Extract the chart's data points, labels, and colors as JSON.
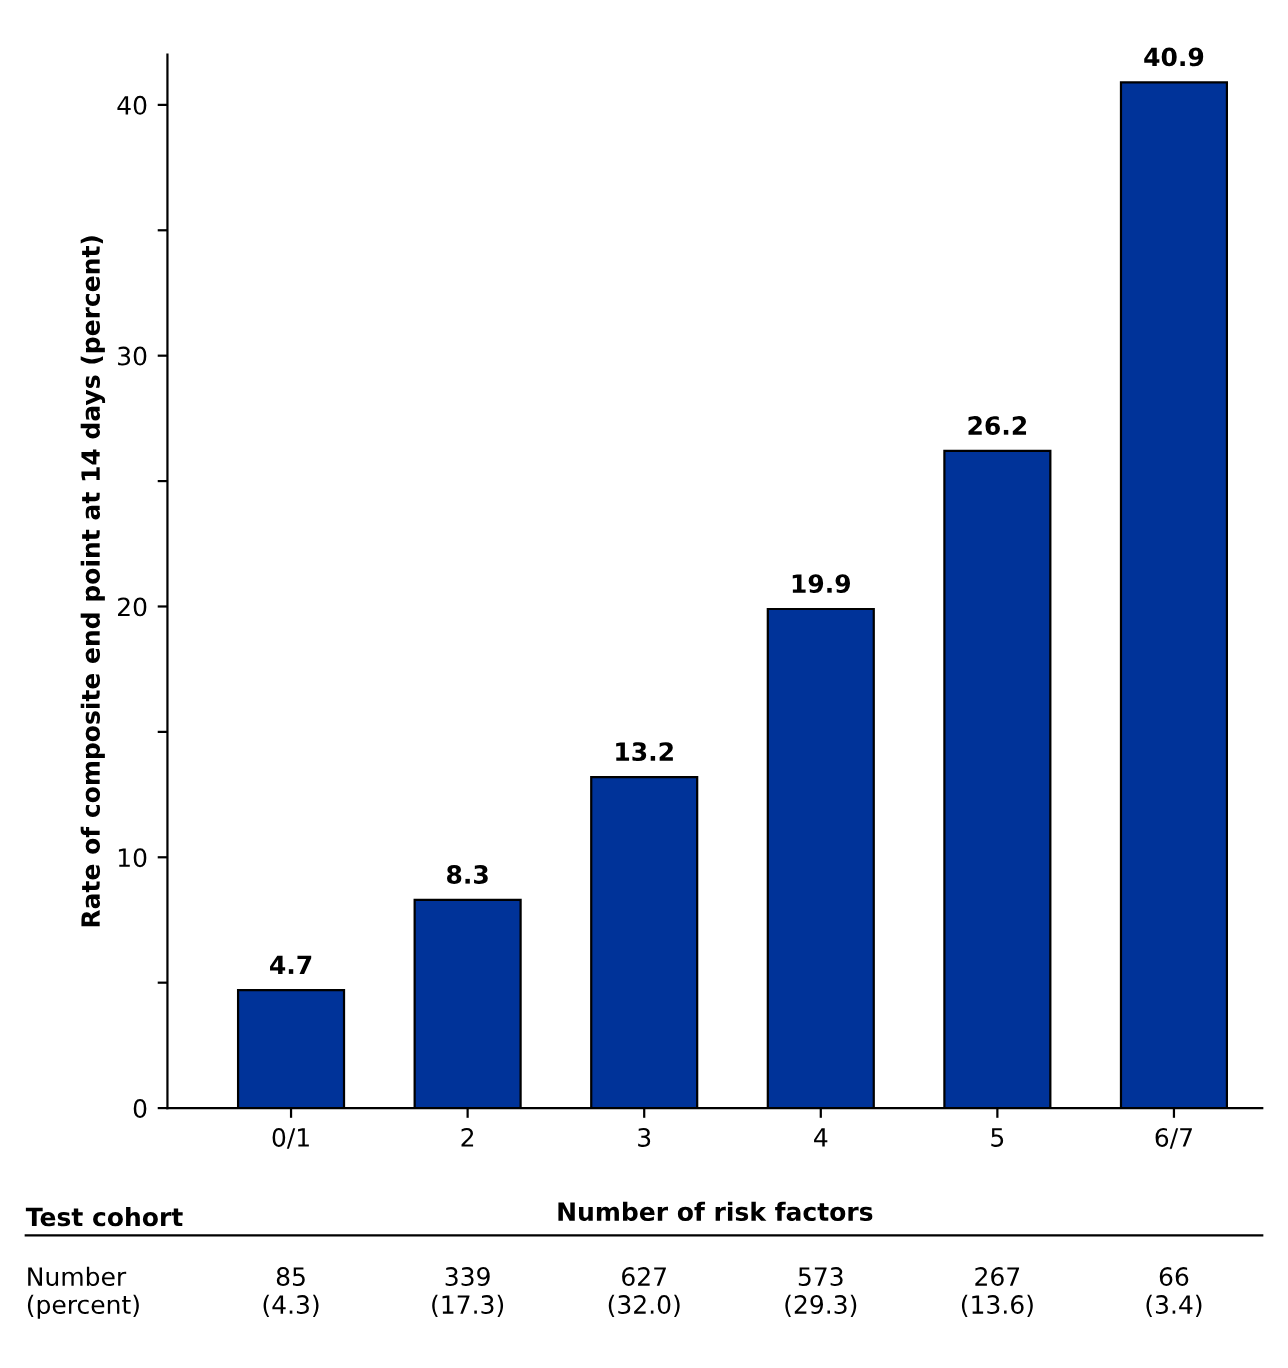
{
  "chart_data": {
    "type": "bar",
    "xlabel": "Number of risk factors",
    "ylabel": "Rate of composite end point at 14 days (percent)",
    "categories": [
      "0/1",
      "2",
      "3",
      "4",
      "5",
      "6/7"
    ],
    "values": [
      4.7,
      8.3,
      13.2,
      19.9,
      26.2,
      40.9
    ],
    "color": "#003399",
    "ylim": [
      0,
      42
    ],
    "yticks": [
      0,
      {
        "value": 5,
        "label": null
      },
      10,
      {
        "value": 15,
        "label": null
      },
      20,
      {
        "value": 25,
        "label": null
      },
      30,
      {
        "value": 35,
        "label": null
      },
      40
    ],
    "data_labels": true,
    "grid": false,
    "annotations": [
      "Test cohort",
      "Number\n(percent)",
      "85\n(4.3)",
      "339\n(17.3)",
      "627\n(32.0)",
      "573\n(29.3)",
      "267\n(13.6)",
      "66\n(3.4)"
    ]
  }
}
